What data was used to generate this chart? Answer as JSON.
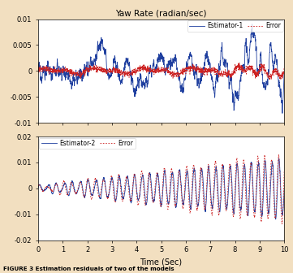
{
  "title_top": "Yaw Rate (radian/sec)",
  "xlabel": "Time (Sec)",
  "figure_caption": "FIGURE 3 Estimation residuals of two of the models",
  "subplot1": {
    "ylim": [
      -0.01,
      0.01
    ],
    "yticks": [
      -0.01,
      -0.005,
      0,
      0.005,
      0.01
    ],
    "xlim": [
      0,
      10
    ],
    "xticks": [
      0,
      1,
      2,
      3,
      4,
      5,
      6,
      7,
      8,
      9,
      10
    ],
    "legend": [
      "Estimator-1",
      "Error"
    ],
    "estimator_color": "#1f3f9f",
    "error_color": "#cc2222"
  },
  "subplot2": {
    "ylim": [
      -0.02,
      0.02
    ],
    "yticks": [
      -0.02,
      -0.01,
      0,
      0.01,
      0.02
    ],
    "xlim": [
      0,
      10
    ],
    "xticks": [
      0,
      1,
      2,
      3,
      4,
      5,
      6,
      7,
      8,
      9,
      10
    ],
    "legend": [
      "Estimator-2",
      "Error"
    ],
    "estimator_color": "#1f3f9f",
    "error_color": "#cc2222"
  },
  "bg_color": "#f2dfc0",
  "plot_bg_color": "#ffffff",
  "seed": 12345
}
